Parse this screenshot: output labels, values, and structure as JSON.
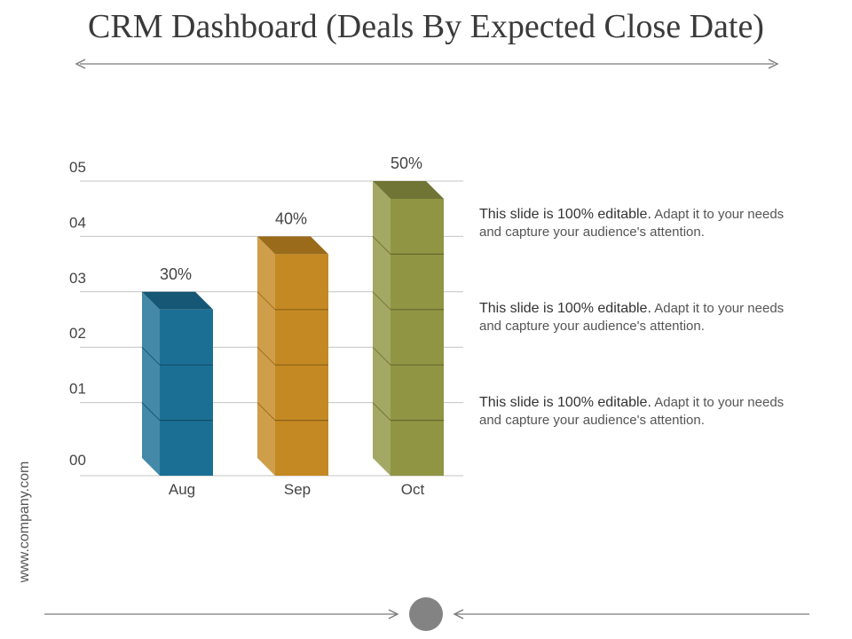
{
  "slide": {
    "title": "CRM Dashboard (Deals By Expected Close Date)",
    "website": "www.company.com"
  },
  "descriptions": [
    {
      "bold": "This slide is 100% editable.",
      "text": " Adapt it to your needs and capture your audience's attention."
    },
    {
      "bold": "This slide is 100% editable.",
      "text": " Adapt it to your needs and capture your audience's attention."
    },
    {
      "bold": "This slide is 100% editable.",
      "text": " Adapt it to your needs and capture your audience's attention."
    }
  ],
  "chart_data": {
    "type": "bar",
    "title": "",
    "xlabel": "",
    "ylabel": "",
    "categories": [
      "Aug",
      "Sep",
      "Oct"
    ],
    "values": [
      3,
      4,
      5
    ],
    "data_labels": [
      "30%",
      "40%",
      "50%"
    ],
    "yticks": [
      "00",
      "01",
      "02",
      "03",
      "04",
      "05"
    ],
    "ylim": [
      0,
      5
    ],
    "grid": true,
    "legend": "none",
    "colors": [
      "#1b6f95",
      "#c48922",
      "#8f9543"
    ]
  }
}
